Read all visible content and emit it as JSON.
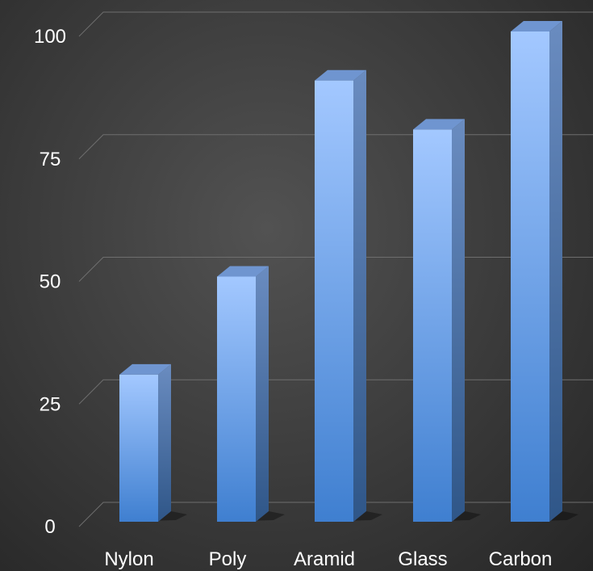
{
  "chart_data": {
    "type": "bar",
    "title": "",
    "categories": [
      "Nylon",
      "Poly",
      "Aramid",
      "Glass",
      "Carbon"
    ],
    "values": [
      30,
      50,
      90,
      80,
      100
    ],
    "ylim": [
      0,
      100
    ],
    "yticks": [
      "0",
      "25",
      "50",
      "75",
      "100"
    ],
    "xlabel": "",
    "ylabel": "",
    "grid": true,
    "colors": {
      "bar_front_top": "#a3c8ff",
      "bar_front_bottom": "#3f7fd0",
      "bar_side": "#4a6ea0",
      "bar_top": "#6f95d0"
    }
  }
}
